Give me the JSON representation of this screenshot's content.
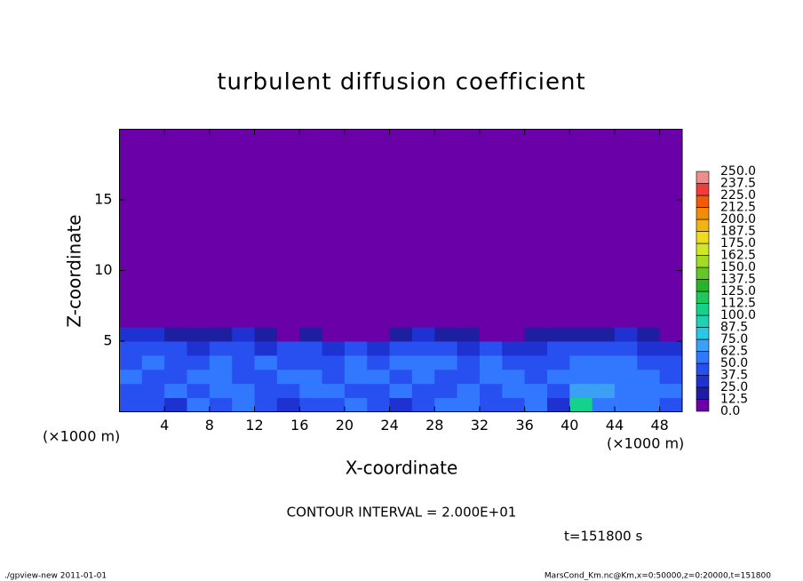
{
  "chart_data": {
    "type": "heatmap",
    "title": "turbulent diffusion coefficient",
    "x_label": "X-coordinate",
    "y_label": "Z-coordinate",
    "x_unit_label": "(×1000 m)",
    "xlim": [
      0,
      50
    ],
    "ylim": [
      0,
      20
    ],
    "xticks": [
      4,
      8,
      12,
      16,
      20,
      24,
      28,
      32,
      36,
      40,
      44,
      48
    ],
    "yticks": [
      5,
      10,
      15
    ],
    "x_bins": [
      0,
      2,
      4,
      6,
      8,
      10,
      12,
      14,
      16,
      18,
      20,
      22,
      24,
      26,
      28,
      30,
      32,
      34,
      36,
      38,
      40,
      42,
      44,
      46,
      48,
      50
    ],
    "z_bins": [
      0,
      1,
      2,
      3,
      4,
      5,
      6,
      20
    ],
    "z_values": [
      [
        40,
        45,
        35,
        50,
        45,
        55,
        40,
        35,
        45,
        40,
        50,
        45,
        35,
        40,
        50,
        55,
        45,
        40,
        50,
        35,
        100,
        60,
        55,
        50,
        45
      ],
      [
        45,
        40,
        50,
        45,
        55,
        50,
        45,
        40,
        50,
        55,
        45,
        40,
        50,
        45,
        40,
        50,
        45,
        50,
        55,
        40,
        70,
        65,
        60,
        55,
        50
      ],
      [
        50,
        45,
        40,
        55,
        50,
        45,
        40,
        55,
        50,
        45,
        50,
        55,
        45,
        50,
        45,
        40,
        55,
        50,
        45,
        55,
        50,
        60,
        55,
        50,
        45
      ],
      [
        45,
        50,
        45,
        40,
        50,
        45,
        50,
        45,
        40,
        45,
        50,
        45,
        55,
        50,
        60,
        45,
        50,
        45,
        40,
        45,
        50,
        55,
        50,
        45,
        40
      ],
      [
        40,
        45,
        40,
        35,
        45,
        40,
        35,
        45,
        40,
        30,
        40,
        35,
        45,
        40,
        45,
        35,
        40,
        30,
        35,
        40,
        40,
        45,
        40,
        35,
        30
      ],
      [
        25,
        25,
        20,
        15,
        20,
        25,
        20,
        10,
        15,
        10,
        5,
        10,
        20,
        25,
        20,
        15,
        10,
        5,
        15,
        20,
        15,
        20,
        25,
        20,
        10
      ],
      [
        0,
        0,
        0,
        0,
        0,
        0,
        0,
        0,
        0,
        0,
        0,
        0,
        0,
        0,
        0,
        0,
        0,
        0,
        0,
        0,
        0,
        0,
        0,
        0,
        0
      ]
    ],
    "colorbar": {
      "levels": [
        {
          "value": 0,
          "label": "0.0"
        },
        12.5,
        {
          "value": 25,
          "label": "25.0"
        },
        37.5,
        {
          "value": 50,
          "label": "50.0"
        },
        62.5,
        {
          "value": 75,
          "label": "75.0"
        },
        87.5,
        {
          "value": 100,
          "label": "100.0"
        },
        112.5,
        {
          "value": 125,
          "label": "125.0"
        },
        137.5,
        {
          "value": 150,
          "label": "150.0"
        },
        162.5,
        {
          "value": 175,
          "label": "175.0"
        },
        187.5,
        {
          "value": 200,
          "label": "200.0"
        },
        212.5,
        {
          "value": 225,
          "label": "225.0"
        },
        237.5,
        {
          "value": 250,
          "label": "250.0"
        }
      ],
      "colors": [
        "#6a00a8",
        "#1e1ea0",
        "#1e32d2",
        "#2850f0",
        "#3278ff",
        "#3ca0f5",
        "#28c8e6",
        "#1ed2b4",
        "#14d28c",
        "#1ec85a",
        "#28b428",
        "#64c828",
        "#a0dc28",
        "#d2e628",
        "#f0dc1e",
        "#f0b414",
        "#f08c0a",
        "#f05a0a",
        "#f03c3c",
        "#f08c8c"
      ]
    },
    "contour_interval_label": "CONTOUR INTERVAL = 2.000E+01",
    "time_label": "t=151800 s",
    "footer_left": "./gpview-new   2011-01-01",
    "footer_right": "MarsCond_Km.nc@Km,x=0:50000,z=0:20000,t=151800"
  }
}
